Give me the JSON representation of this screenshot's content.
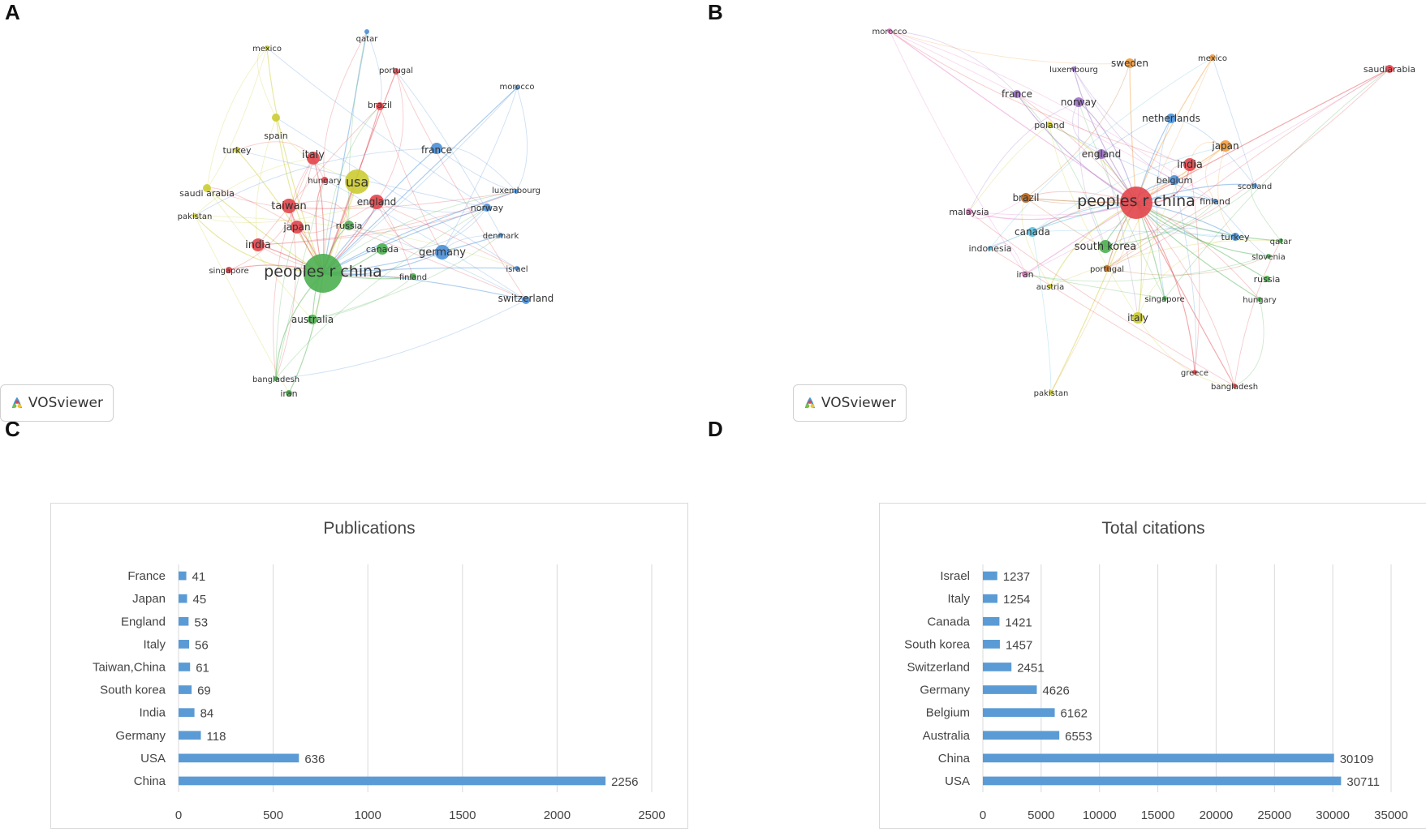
{
  "panels": {
    "a": "A",
    "b": "B",
    "c": "C",
    "d": "D"
  },
  "badge": {
    "label": "VOSviewer"
  },
  "colors": {
    "red": "#e2454b",
    "green": "#4caf50",
    "blue": "#4a90d9",
    "yellow": "#cccc33",
    "orange": "#f39c3c",
    "purple": "#9b6fc4",
    "pink": "#e67bc8",
    "cyan": "#5bc0de",
    "brown": "#b5651d",
    "bar": "#5b9bd5",
    "grid": "#d9d9d9"
  },
  "network_a": {
    "hub": "peoples r china",
    "nodes": [
      {
        "label": "qatar",
        "color": "blue"
      },
      {
        "label": "mexico",
        "color": "yellow"
      },
      {
        "label": "portugal",
        "color": "red"
      },
      {
        "label": "morocco",
        "color": "blue"
      },
      {
        "label": "brazil",
        "color": "red"
      },
      {
        "label": "spain",
        "color": "yellow"
      },
      {
        "label": "france",
        "color": "blue"
      },
      {
        "label": "turkey",
        "color": "yellow"
      },
      {
        "label": "italy",
        "color": "red"
      },
      {
        "label": "usa",
        "color": "yellow"
      },
      {
        "label": "hungary",
        "color": "red"
      },
      {
        "label": "saudi arabia",
        "color": "yellow"
      },
      {
        "label": "luxembourg",
        "color": "blue"
      },
      {
        "label": "england",
        "color": "red"
      },
      {
        "label": "taiwan",
        "color": "red"
      },
      {
        "label": "norway",
        "color": "blue"
      },
      {
        "label": "pakistan",
        "color": "yellow"
      },
      {
        "label": "russia",
        "color": "green"
      },
      {
        "label": "japan",
        "color": "red"
      },
      {
        "label": "denmark",
        "color": "blue"
      },
      {
        "label": "india",
        "color": "red"
      },
      {
        "label": "canada",
        "color": "green"
      },
      {
        "label": "germany",
        "color": "blue"
      },
      {
        "label": "singapore",
        "color": "red"
      },
      {
        "label": "peoples r china",
        "color": "green"
      },
      {
        "label": "israel",
        "color": "blue"
      },
      {
        "label": "finland",
        "color": "green"
      },
      {
        "label": "switzerland",
        "color": "blue"
      },
      {
        "label": "australia",
        "color": "green"
      },
      {
        "label": "bangladesh",
        "color": "green"
      },
      {
        "label": "iran",
        "color": "green"
      }
    ]
  },
  "network_b": {
    "hub": "peoples r china",
    "nodes": [
      {
        "label": "morocco",
        "color": "pink"
      },
      {
        "label": "luxembourg",
        "color": "purple"
      },
      {
        "label": "sweden",
        "color": "orange"
      },
      {
        "label": "mexico",
        "color": "orange"
      },
      {
        "label": "saudiarabia",
        "color": "red"
      },
      {
        "label": "france",
        "color": "purple"
      },
      {
        "label": "norway",
        "color": "purple"
      },
      {
        "label": "netherlands",
        "color": "blue"
      },
      {
        "label": "poland",
        "color": "yellow"
      },
      {
        "label": "japan",
        "color": "orange"
      },
      {
        "label": "england",
        "color": "purple"
      },
      {
        "label": "india",
        "color": "red"
      },
      {
        "label": "belgium",
        "color": "blue"
      },
      {
        "label": "scotland",
        "color": "blue"
      },
      {
        "label": "brazil",
        "color": "brown"
      },
      {
        "label": "peoples r china",
        "color": "red"
      },
      {
        "label": "finland",
        "color": "blue"
      },
      {
        "label": "malaysia",
        "color": "pink"
      },
      {
        "label": "canada",
        "color": "cyan"
      },
      {
        "label": "turkey",
        "color": "blue"
      },
      {
        "label": "qatar",
        "color": "green"
      },
      {
        "label": "indonesia",
        "color": "cyan"
      },
      {
        "label": "south korea",
        "color": "green"
      },
      {
        "label": "slovenia",
        "color": "green"
      },
      {
        "label": "portugal",
        "color": "brown"
      },
      {
        "label": "iran",
        "color": "pink"
      },
      {
        "label": "russia",
        "color": "green"
      },
      {
        "label": "austria",
        "color": "yellow"
      },
      {
        "label": "singapore",
        "color": "green"
      },
      {
        "label": "hungary",
        "color": "green"
      },
      {
        "label": "italy",
        "color": "yellow"
      },
      {
        "label": "greece",
        "color": "red"
      },
      {
        "label": "bangladesh",
        "color": "red"
      },
      {
        "label": "pakistan",
        "color": "yellow"
      }
    ]
  },
  "chart_data": [
    {
      "type": "bar",
      "orientation": "horizontal",
      "title": "Publications",
      "categories": [
        "France",
        "Japan",
        "England",
        "Italy",
        "Taiwan,China",
        "South korea",
        "India",
        "Germany",
        "USA",
        "China"
      ],
      "values": [
        41,
        45,
        53,
        56,
        61,
        69,
        84,
        118,
        636,
        2256
      ],
      "xlim": [
        0,
        2500
      ],
      "xticks": [
        0,
        500,
        1000,
        1500,
        2000,
        2500
      ],
      "xlabel": "",
      "ylabel": ""
    },
    {
      "type": "bar",
      "orientation": "horizontal",
      "title": "Total citations",
      "categories": [
        "Israel",
        "Italy",
        "Canada",
        "South korea",
        "Switzerland",
        "Germany",
        "Belgium",
        "Australia",
        "China",
        "USA"
      ],
      "values": [
        1237,
        1254,
        1421,
        1457,
        2451,
        4626,
        6162,
        6553,
        30109,
        30711
      ],
      "xlim": [
        0,
        35000
      ],
      "xticks": [
        0,
        5000,
        10000,
        15000,
        20000,
        25000,
        30000,
        35000
      ],
      "xlabel": "",
      "ylabel": ""
    }
  ]
}
